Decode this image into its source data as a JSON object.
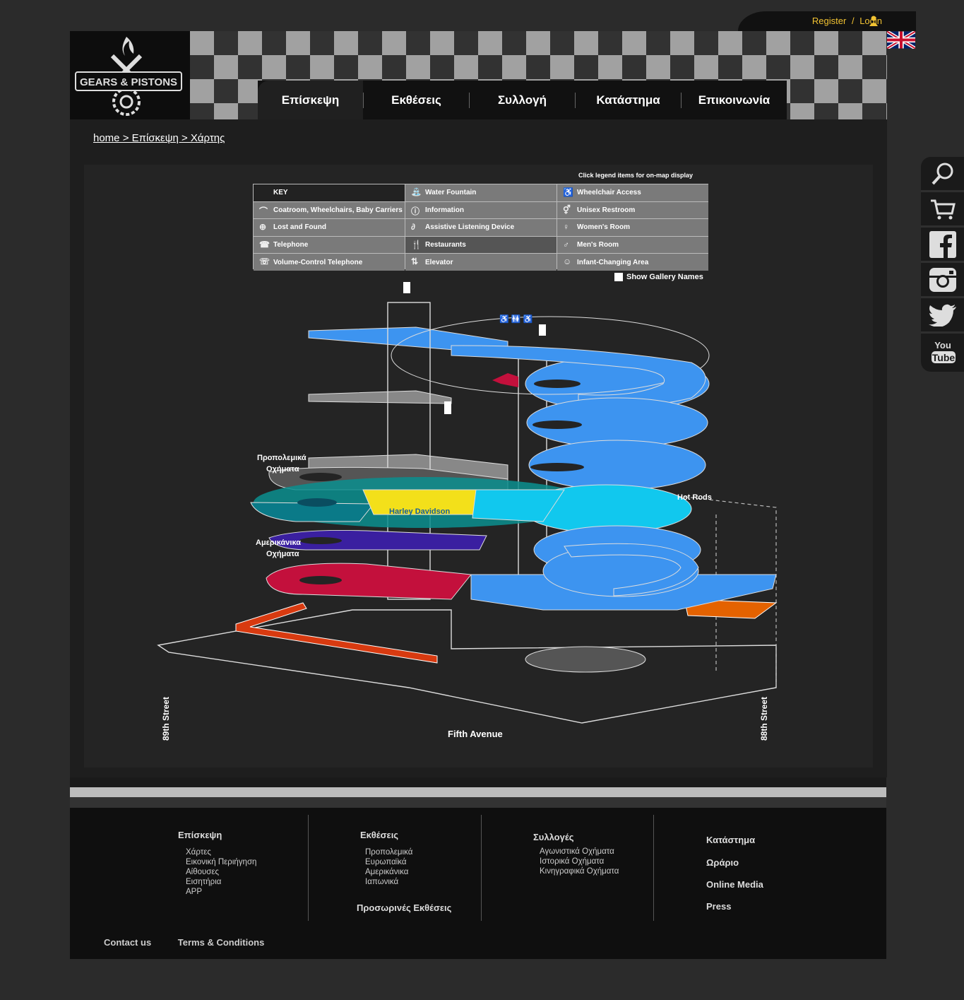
{
  "topbar": {
    "register": "Register",
    "separator": "/",
    "login": "Login"
  },
  "brand": {
    "logo_text": "GEARS & PISTONS"
  },
  "nav": {
    "tabs": [
      {
        "label": "Επίσκεψη"
      },
      {
        "label": "Εκθέσεις"
      },
      {
        "label": "Συλλογή"
      },
      {
        "label": "Κατάστημα"
      },
      {
        "label": "Επικοινωνία"
      }
    ]
  },
  "breadcrumb": "home > Επίσκεψη > Χάρτης",
  "map": {
    "legend_hint": "Click legend items for on-map display",
    "legend": [
      {
        "label": "KEY",
        "icon": ""
      },
      {
        "label": "Water Fountain",
        "icon": "water-fountain-icon"
      },
      {
        "label": "Wheelchair Access",
        "icon": "wheelchair-icon"
      },
      {
        "label": "Coatroom, Wheelchairs, Baby Carriers",
        "icon": "hanger-icon"
      },
      {
        "label": "Information",
        "icon": "info-icon"
      },
      {
        "label": "Unisex Restroom",
        "icon": "unisex-restroom-icon"
      },
      {
        "label": "Lost and Found",
        "icon": "lost-found-icon"
      },
      {
        "label": "Assistive Listening Device",
        "icon": "ear-icon"
      },
      {
        "label": "Women's Room",
        "icon": "womens-room-icon"
      },
      {
        "label": "Telephone",
        "icon": "telephone-icon"
      },
      {
        "label": "Restaurants",
        "icon": "restaurant-icon"
      },
      {
        "label": "Men's Room",
        "icon": "mens-room-icon"
      },
      {
        "label": "Volume-Control Telephone",
        "icon": "volume-telephone-icon"
      },
      {
        "label": "Elevator",
        "icon": "elevator-icon"
      },
      {
        "label": "Infant-Changing Area",
        "icon": "infant-changing-icon"
      }
    ],
    "show_gallery_names": "Show Gallery Names",
    "labels": {
      "prewar_line1": "Προπολεμικά",
      "prewar_line2": "Οχήματα",
      "harley": "Harley Davidson",
      "american_line1": "Αμερικάνικα",
      "american_line2": "Οχήματα",
      "hotrods": "Hot Rods",
      "street_left": "89th Street",
      "street_right": "88th Street",
      "avenue": "Fifth Avenue"
    },
    "colors": {
      "blue": "#3d94f0",
      "cyan": "#11c8ee",
      "teal": "#0a8f8f",
      "yellow": "#f3e01a",
      "purple": "#3a1fa0",
      "crimson": "#c3103c",
      "orange": "#e46200",
      "red": "#d83a10"
    }
  },
  "footer": {
    "col1": {
      "title": "Επίσκεψη",
      "items": [
        "Χάρτες",
        "Εικονική Περιήγηση",
        "Αίθουσες",
        "Εισητήρια",
        "APP"
      ]
    },
    "col2": {
      "title": "Εκθέσεις",
      "items": [
        "Προπολεμικά",
        "Ευρωπαϊκά",
        "Αμερικάνικα",
        "Ιαπωνικά"
      ],
      "extra": "Προσωρινές Εκθέσεις"
    },
    "col3": {
      "title": "Συλλογές",
      "items": [
        "Αγωνιστικά Οχήματα",
        "Ιστορικά Οχήματα",
        "Κινηγραφικά Οχήματα"
      ]
    },
    "col4": {
      "items": [
        "Κατάστημα",
        "Ωράριο",
        "Online Media",
        "Press"
      ]
    },
    "links": {
      "contact": "Contact us",
      "terms": "Terms & Conditions"
    }
  },
  "side_icons": [
    "search-icon",
    "cart-icon",
    "facebook-icon",
    "instagram-icon",
    "twitter-icon",
    "youtube-icon"
  ]
}
